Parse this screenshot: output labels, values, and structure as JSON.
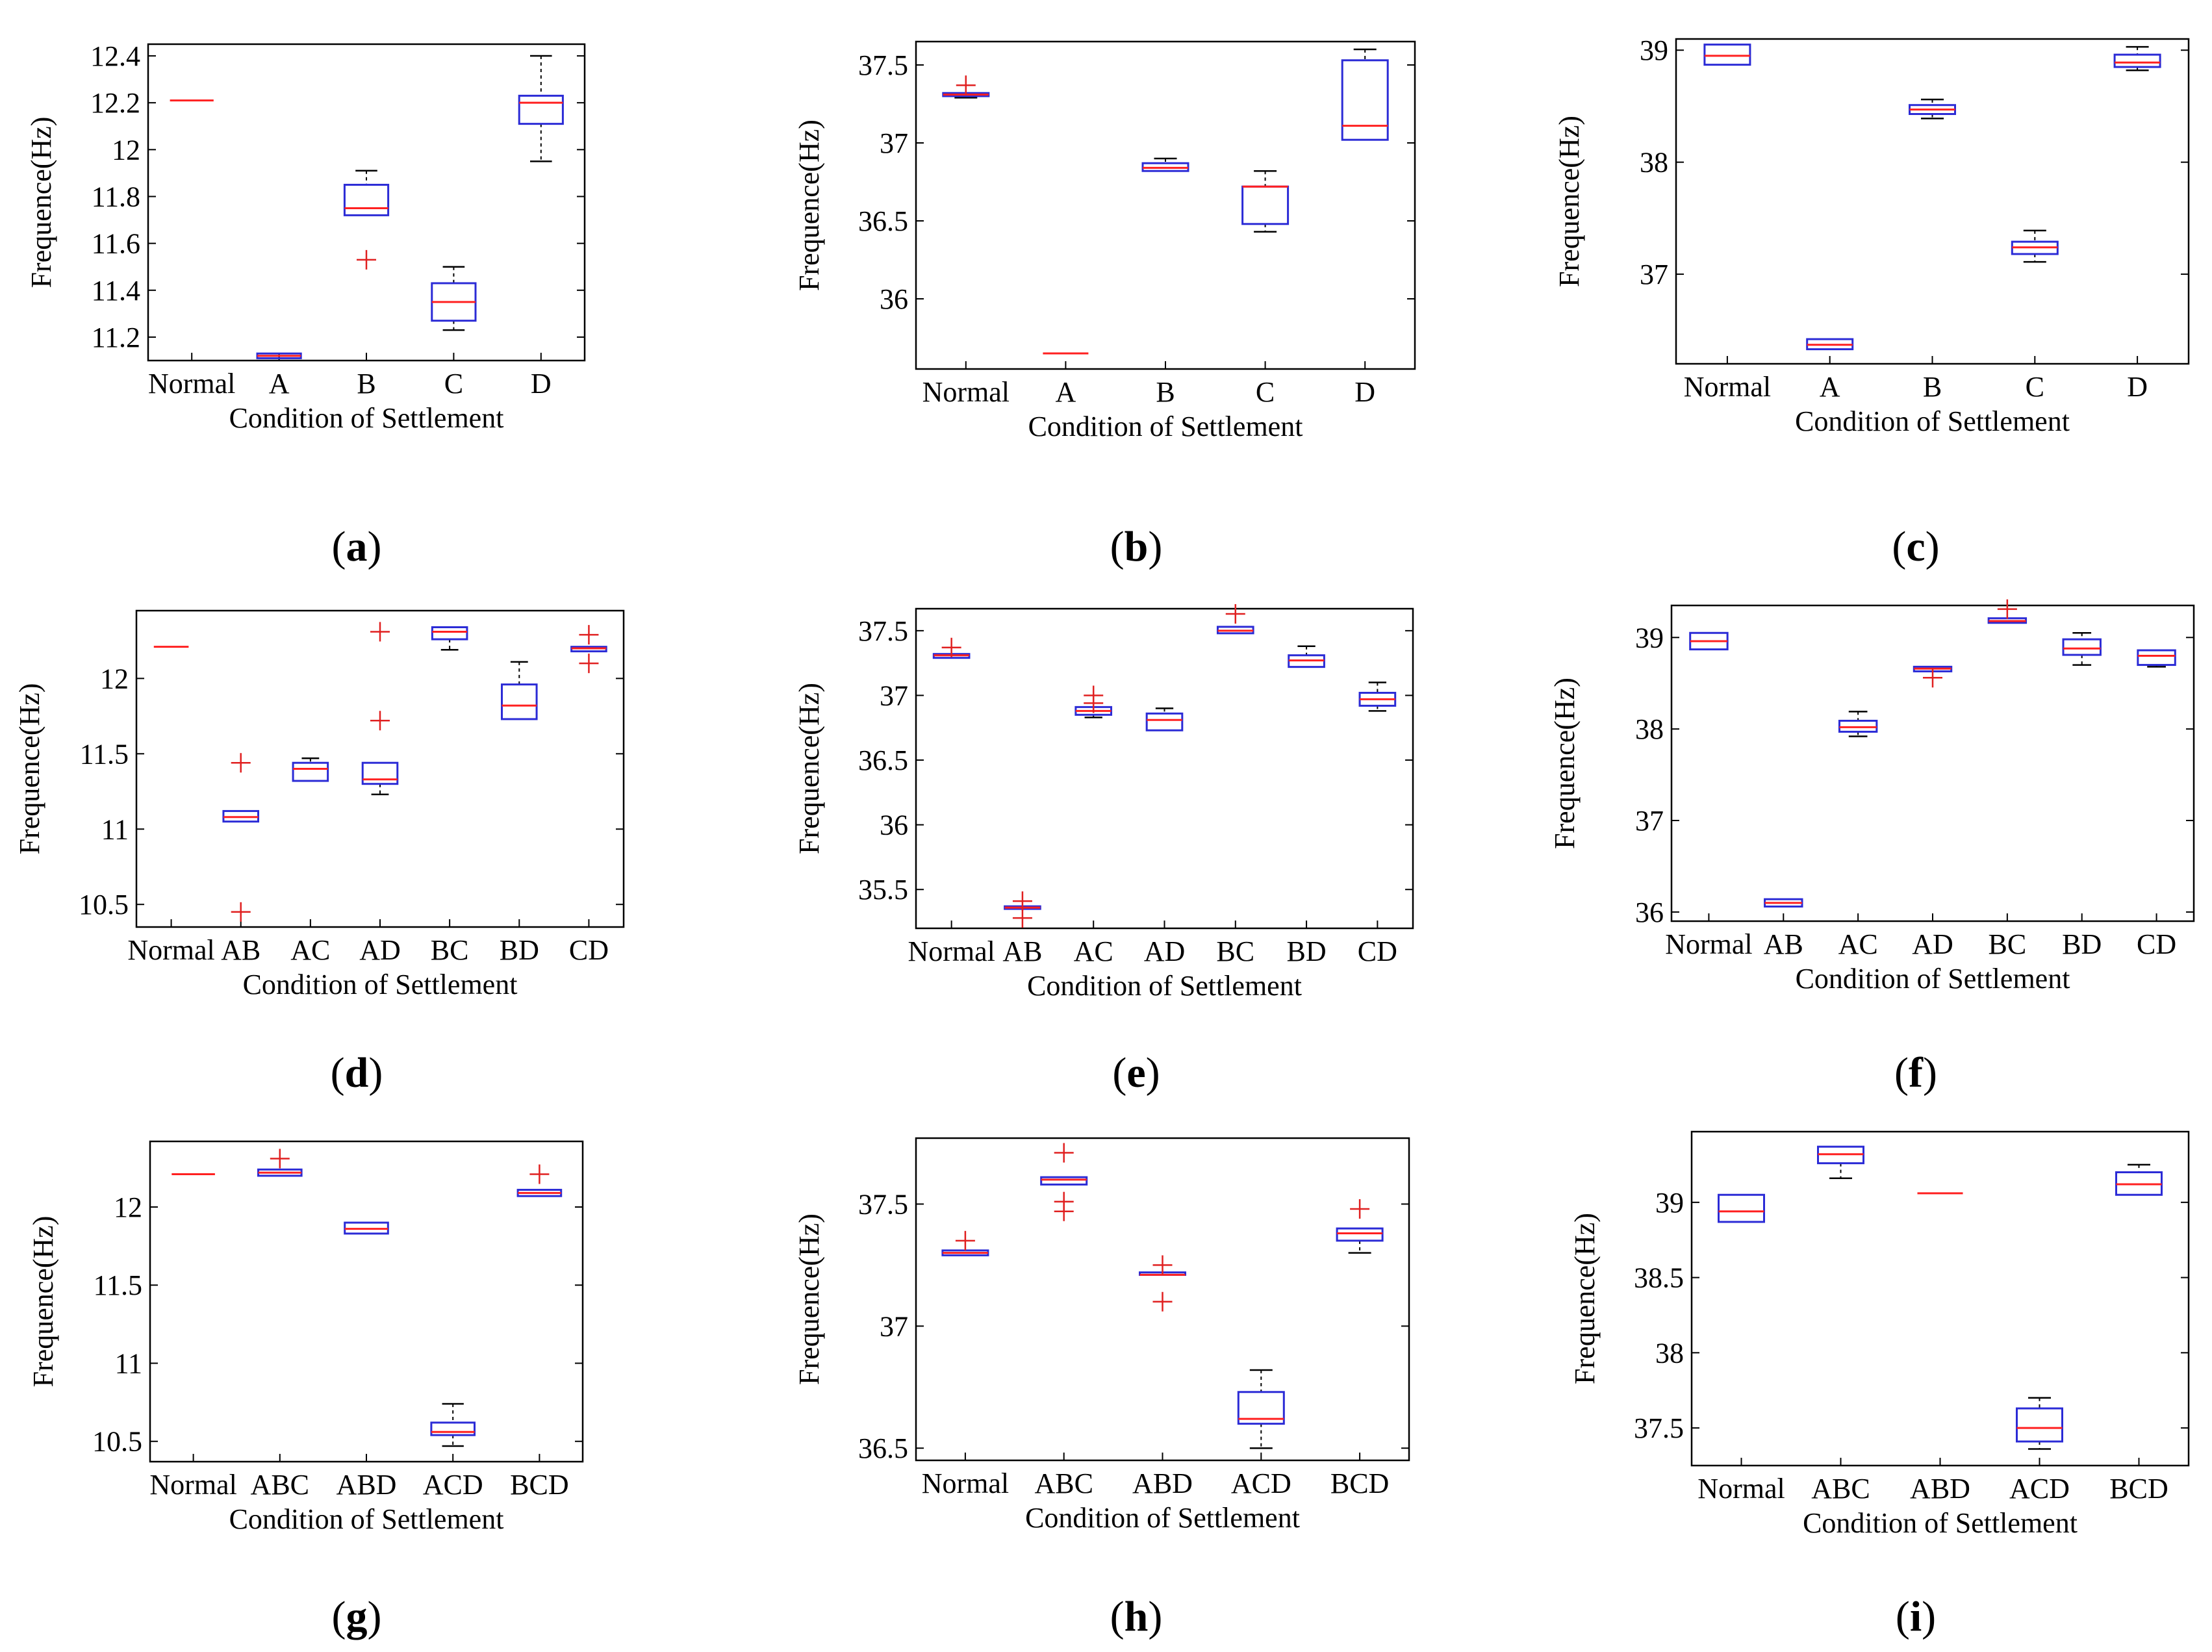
{
  "colors": {
    "box": "#2b2bd6",
    "median": "#ff2020",
    "outlier": "#e02020",
    "whisker": "#000000",
    "axis": "#000000"
  },
  "chart_data": [
    {
      "id": "a",
      "type": "box",
      "caption": "a",
      "title": "",
      "xlabel": "Condition of Settlement",
      "ylabel": "Frequence(Hz)",
      "ylim": [
        11.1,
        12.45
      ],
      "yticks": [
        "11.2",
        "11.4",
        "11.6",
        "11.8",
        "12",
        "12.2",
        "12.4"
      ],
      "categories": [
        "Normal",
        "A",
        "B",
        "C",
        "D"
      ],
      "boxes": [
        {
          "min": 12.21,
          "q1": 12.21,
          "median": 12.21,
          "q3": 12.21,
          "max": 12.21,
          "outliers": []
        },
        {
          "min": 11.11,
          "q1": 11.11,
          "median": 11.12,
          "q3": 11.13,
          "max": 11.13,
          "outliers": []
        },
        {
          "min": 11.72,
          "q1": 11.72,
          "median": 11.75,
          "q3": 11.85,
          "max": 11.91,
          "outliers": [
            11.53
          ]
        },
        {
          "min": 11.23,
          "q1": 11.27,
          "median": 11.35,
          "q3": 11.43,
          "max": 11.5,
          "outliers": []
        },
        {
          "min": 11.95,
          "q1": 12.11,
          "median": 12.2,
          "q3": 12.23,
          "max": 12.4,
          "outliers": []
        }
      ]
    },
    {
      "id": "b",
      "type": "box",
      "caption": "b",
      "title": "",
      "xlabel": "Condition of Settlement",
      "ylabel": "Frequence(Hz)",
      "ylim": [
        35.55,
        37.65
      ],
      "yticks": [
        "36",
        "36.5",
        "37",
        "37.5"
      ],
      "categories": [
        "Normal",
        "A",
        "B",
        "C",
        "D"
      ],
      "boxes": [
        {
          "min": 37.29,
          "q1": 37.3,
          "median": 37.31,
          "q3": 37.32,
          "max": 37.32,
          "outliers": [
            37.37
          ]
        },
        {
          "min": 35.65,
          "q1": 35.65,
          "median": 35.65,
          "q3": 35.65,
          "max": 35.65,
          "outliers": []
        },
        {
          "min": 36.82,
          "q1": 36.82,
          "median": 36.84,
          "q3": 36.87,
          "max": 36.9,
          "outliers": []
        },
        {
          "min": 36.43,
          "q1": 36.48,
          "median": 36.72,
          "q3": 36.72,
          "max": 36.82,
          "outliers": []
        },
        {
          "min": 37.02,
          "q1": 37.02,
          "median": 37.11,
          "q3": 37.53,
          "max": 37.6,
          "outliers": []
        }
      ]
    },
    {
      "id": "c",
      "type": "box",
      "caption": "c",
      "title": "",
      "xlabel": "Condition of Settlement",
      "ylabel": "Frequence(Hz)",
      "ylim": [
        36.2,
        39.1
      ],
      "yticks": [
        "37",
        "38",
        "39"
      ],
      "categories": [
        "Normal",
        "A",
        "B",
        "C",
        "D"
      ],
      "boxes": [
        {
          "min": 38.87,
          "q1": 38.87,
          "median": 38.95,
          "q3": 39.05,
          "max": 39.05,
          "outliers": []
        },
        {
          "min": 36.33,
          "q1": 36.33,
          "median": 36.37,
          "q3": 36.42,
          "max": 36.42,
          "outliers": []
        },
        {
          "min": 38.39,
          "q1": 38.43,
          "median": 38.47,
          "q3": 38.51,
          "max": 38.56,
          "outliers": []
        },
        {
          "min": 37.11,
          "q1": 37.18,
          "median": 37.24,
          "q3": 37.29,
          "max": 37.39,
          "outliers": []
        },
        {
          "min": 38.82,
          "q1": 38.85,
          "median": 38.89,
          "q3": 38.96,
          "max": 39.03,
          "outliers": []
        }
      ]
    },
    {
      "id": "d",
      "type": "box",
      "caption": "d",
      "title": "",
      "xlabel": "Condition of Settlement",
      "ylabel": "Frequence(Hz)",
      "ylim": [
        10.35,
        12.45
      ],
      "yticks": [
        "10.5",
        "11",
        "11.5",
        "12"
      ],
      "categories": [
        "Normal",
        "AB",
        "AC",
        "AD",
        "BC",
        "BD",
        "CD"
      ],
      "boxes": [
        {
          "min": 12.21,
          "q1": 12.21,
          "median": 12.21,
          "q3": 12.21,
          "max": 12.21,
          "outliers": []
        },
        {
          "min": 11.05,
          "q1": 11.05,
          "median": 11.08,
          "q3": 11.12,
          "max": 11.12,
          "outliers": [
            11.44,
            10.45
          ]
        },
        {
          "min": 11.32,
          "q1": 11.32,
          "median": 11.4,
          "q3": 11.44,
          "max": 11.47,
          "outliers": []
        },
        {
          "min": 11.23,
          "q1": 11.3,
          "median": 11.33,
          "q3": 11.44,
          "max": 11.44,
          "outliers": [
            12.31,
            11.72
          ]
        },
        {
          "min": 12.19,
          "q1": 12.26,
          "median": 12.31,
          "q3": 12.34,
          "max": 12.34,
          "outliers": []
        },
        {
          "min": 11.73,
          "q1": 11.73,
          "median": 11.82,
          "q3": 11.96,
          "max": 12.11,
          "outliers": []
        },
        {
          "min": 12.18,
          "q1": 12.18,
          "median": 12.2,
          "q3": 12.21,
          "max": 12.21,
          "outliers": [
            12.29,
            12.1
          ]
        }
      ]
    },
    {
      "id": "e",
      "type": "box",
      "caption": "e",
      "title": "",
      "xlabel": "Condition of Settlement",
      "ylabel": "Frequence(Hz)",
      "ylim": [
        35.2,
        37.67
      ],
      "yticks": [
        "35.5",
        "36",
        "36.5",
        "37",
        "37.5"
      ],
      "categories": [
        "Normal",
        "AB",
        "AC",
        "AD",
        "BC",
        "BD",
        "CD"
      ],
      "boxes": [
        {
          "min": 37.29,
          "q1": 37.29,
          "median": 37.31,
          "q3": 37.32,
          "max": 37.32,
          "outliers": [
            37.37
          ]
        },
        {
          "min": 35.35,
          "q1": 35.35,
          "median": 35.36,
          "q3": 35.37,
          "max": 35.37,
          "outliers": [
            35.41,
            35.28
          ]
        },
        {
          "min": 36.83,
          "q1": 36.85,
          "median": 36.88,
          "q3": 36.91,
          "max": 36.91,
          "outliers": [
            37.0,
            36.94
          ]
        },
        {
          "min": 36.73,
          "q1": 36.73,
          "median": 36.81,
          "q3": 36.86,
          "max": 36.9,
          "outliers": []
        },
        {
          "min": 37.48,
          "q1": 37.48,
          "median": 37.5,
          "q3": 37.53,
          "max": 37.53,
          "outliers": [
            37.63
          ]
        },
        {
          "min": 37.22,
          "q1": 37.22,
          "median": 37.27,
          "q3": 37.31,
          "max": 37.38,
          "outliers": []
        },
        {
          "min": 36.88,
          "q1": 36.92,
          "median": 36.97,
          "q3": 37.02,
          "max": 37.1,
          "outliers": []
        }
      ]
    },
    {
      "id": "f",
      "type": "box",
      "caption": "f",
      "title": "",
      "xlabel": "Condition of Settlement",
      "ylabel": "Frequence(Hz)",
      "ylim": [
        35.9,
        39.35
      ],
      "yticks": [
        "36",
        "37",
        "38",
        "39"
      ],
      "categories": [
        "Normal",
        "AB",
        "AC",
        "AD",
        "BC",
        "BD",
        "CD"
      ],
      "boxes": [
        {
          "min": 38.87,
          "q1": 38.87,
          "median": 38.96,
          "q3": 39.05,
          "max": 39.05,
          "outliers": []
        },
        {
          "min": 36.06,
          "q1": 36.06,
          "median": 36.1,
          "q3": 36.14,
          "max": 36.14,
          "outliers": []
        },
        {
          "min": 37.92,
          "q1": 37.97,
          "median": 38.02,
          "q3": 38.09,
          "max": 38.19,
          "outliers": []
        },
        {
          "min": 38.63,
          "q1": 38.63,
          "median": 38.66,
          "q3": 38.68,
          "max": 38.68,
          "outliers": [
            38.56
          ]
        },
        {
          "min": 39.16,
          "q1": 39.16,
          "median": 39.18,
          "q3": 39.21,
          "max": 39.21,
          "outliers": [
            39.31
          ]
        },
        {
          "min": 38.7,
          "q1": 38.81,
          "median": 38.88,
          "q3": 38.98,
          "max": 39.05,
          "outliers": []
        },
        {
          "min": 38.68,
          "q1": 38.7,
          "median": 38.8,
          "q3": 38.86,
          "max": 38.86,
          "outliers": []
        }
      ]
    },
    {
      "id": "g",
      "type": "box",
      "caption": "g",
      "title": "",
      "xlabel": "Condition of Settlement",
      "ylabel": "Frequence(Hz)",
      "ylim": [
        10.37,
        12.42
      ],
      "yticks": [
        "10.5",
        "11",
        "11.5",
        "12"
      ],
      "categories": [
        "Normal",
        "ABC",
        "ABD",
        "ACD",
        "BCD"
      ],
      "boxes": [
        {
          "min": 12.21,
          "q1": 12.21,
          "median": 12.21,
          "q3": 12.21,
          "max": 12.21,
          "outliers": []
        },
        {
          "min": 12.2,
          "q1": 12.2,
          "median": 12.22,
          "q3": 12.24,
          "max": 12.24,
          "outliers": [
            12.31
          ]
        },
        {
          "min": 11.83,
          "q1": 11.83,
          "median": 11.86,
          "q3": 11.9,
          "max": 11.9,
          "outliers": []
        },
        {
          "min": 10.47,
          "q1": 10.54,
          "median": 10.56,
          "q3": 10.62,
          "max": 10.74,
          "outliers": []
        },
        {
          "min": 12.07,
          "q1": 12.07,
          "median": 12.09,
          "q3": 12.11,
          "max": 12.11,
          "outliers": [
            12.21
          ]
        }
      ]
    },
    {
      "id": "h",
      "type": "box",
      "caption": "h",
      "title": "",
      "xlabel": "Condition of Settlement",
      "ylabel": "Frequence(Hz)",
      "ylim": [
        36.45,
        37.77
      ],
      "yticks": [
        "36.5",
        "37",
        "37.5"
      ],
      "categories": [
        "Normal",
        "ABC",
        "ABD",
        "ACD",
        "BCD"
      ],
      "boxes": [
        {
          "min": 37.29,
          "q1": 37.29,
          "median": 37.3,
          "q3": 37.31,
          "max": 37.31,
          "outliers": [
            37.35
          ]
        },
        {
          "min": 37.58,
          "q1": 37.58,
          "median": 37.6,
          "q3": 37.61,
          "max": 37.61,
          "outliers": [
            37.71,
            37.51,
            37.47
          ]
        },
        {
          "min": 37.21,
          "q1": 37.21,
          "median": 37.21,
          "q3": 37.22,
          "max": 37.22,
          "outliers": [
            37.25,
            37.1
          ]
        },
        {
          "min": 36.5,
          "q1": 36.6,
          "median": 36.62,
          "q3": 36.73,
          "max": 36.82,
          "outliers": []
        },
        {
          "min": 37.3,
          "q1": 37.35,
          "median": 37.38,
          "q3": 37.4,
          "max": 37.4,
          "outliers": [
            37.48
          ]
        }
      ]
    },
    {
      "id": "i",
      "type": "box",
      "caption": "i",
      "title": "",
      "xlabel": "Condition of Settlement",
      "ylabel": "Frequence(Hz)",
      "ylim": [
        37.25,
        39.47
      ],
      "yticks": [
        "37.5",
        "38",
        "38.5",
        "39"
      ],
      "categories": [
        "Normal",
        "ABC",
        "ABD",
        "ACD",
        "BCD"
      ],
      "boxes": [
        {
          "min": 38.87,
          "q1": 38.87,
          "median": 38.94,
          "q3": 39.05,
          "max": 39.05,
          "outliers": []
        },
        {
          "min": 39.16,
          "q1": 39.26,
          "median": 39.32,
          "q3": 39.37,
          "max": 39.37,
          "outliers": []
        },
        {
          "min": 39.06,
          "q1": 39.06,
          "median": 39.06,
          "q3": 39.06,
          "max": 39.06,
          "outliers": []
        },
        {
          "min": 37.36,
          "q1": 37.41,
          "median": 37.5,
          "q3": 37.63,
          "max": 37.7,
          "outliers": []
        },
        {
          "min": 39.05,
          "q1": 39.05,
          "median": 39.12,
          "q3": 39.2,
          "max": 39.25,
          "outliers": []
        }
      ]
    }
  ]
}
